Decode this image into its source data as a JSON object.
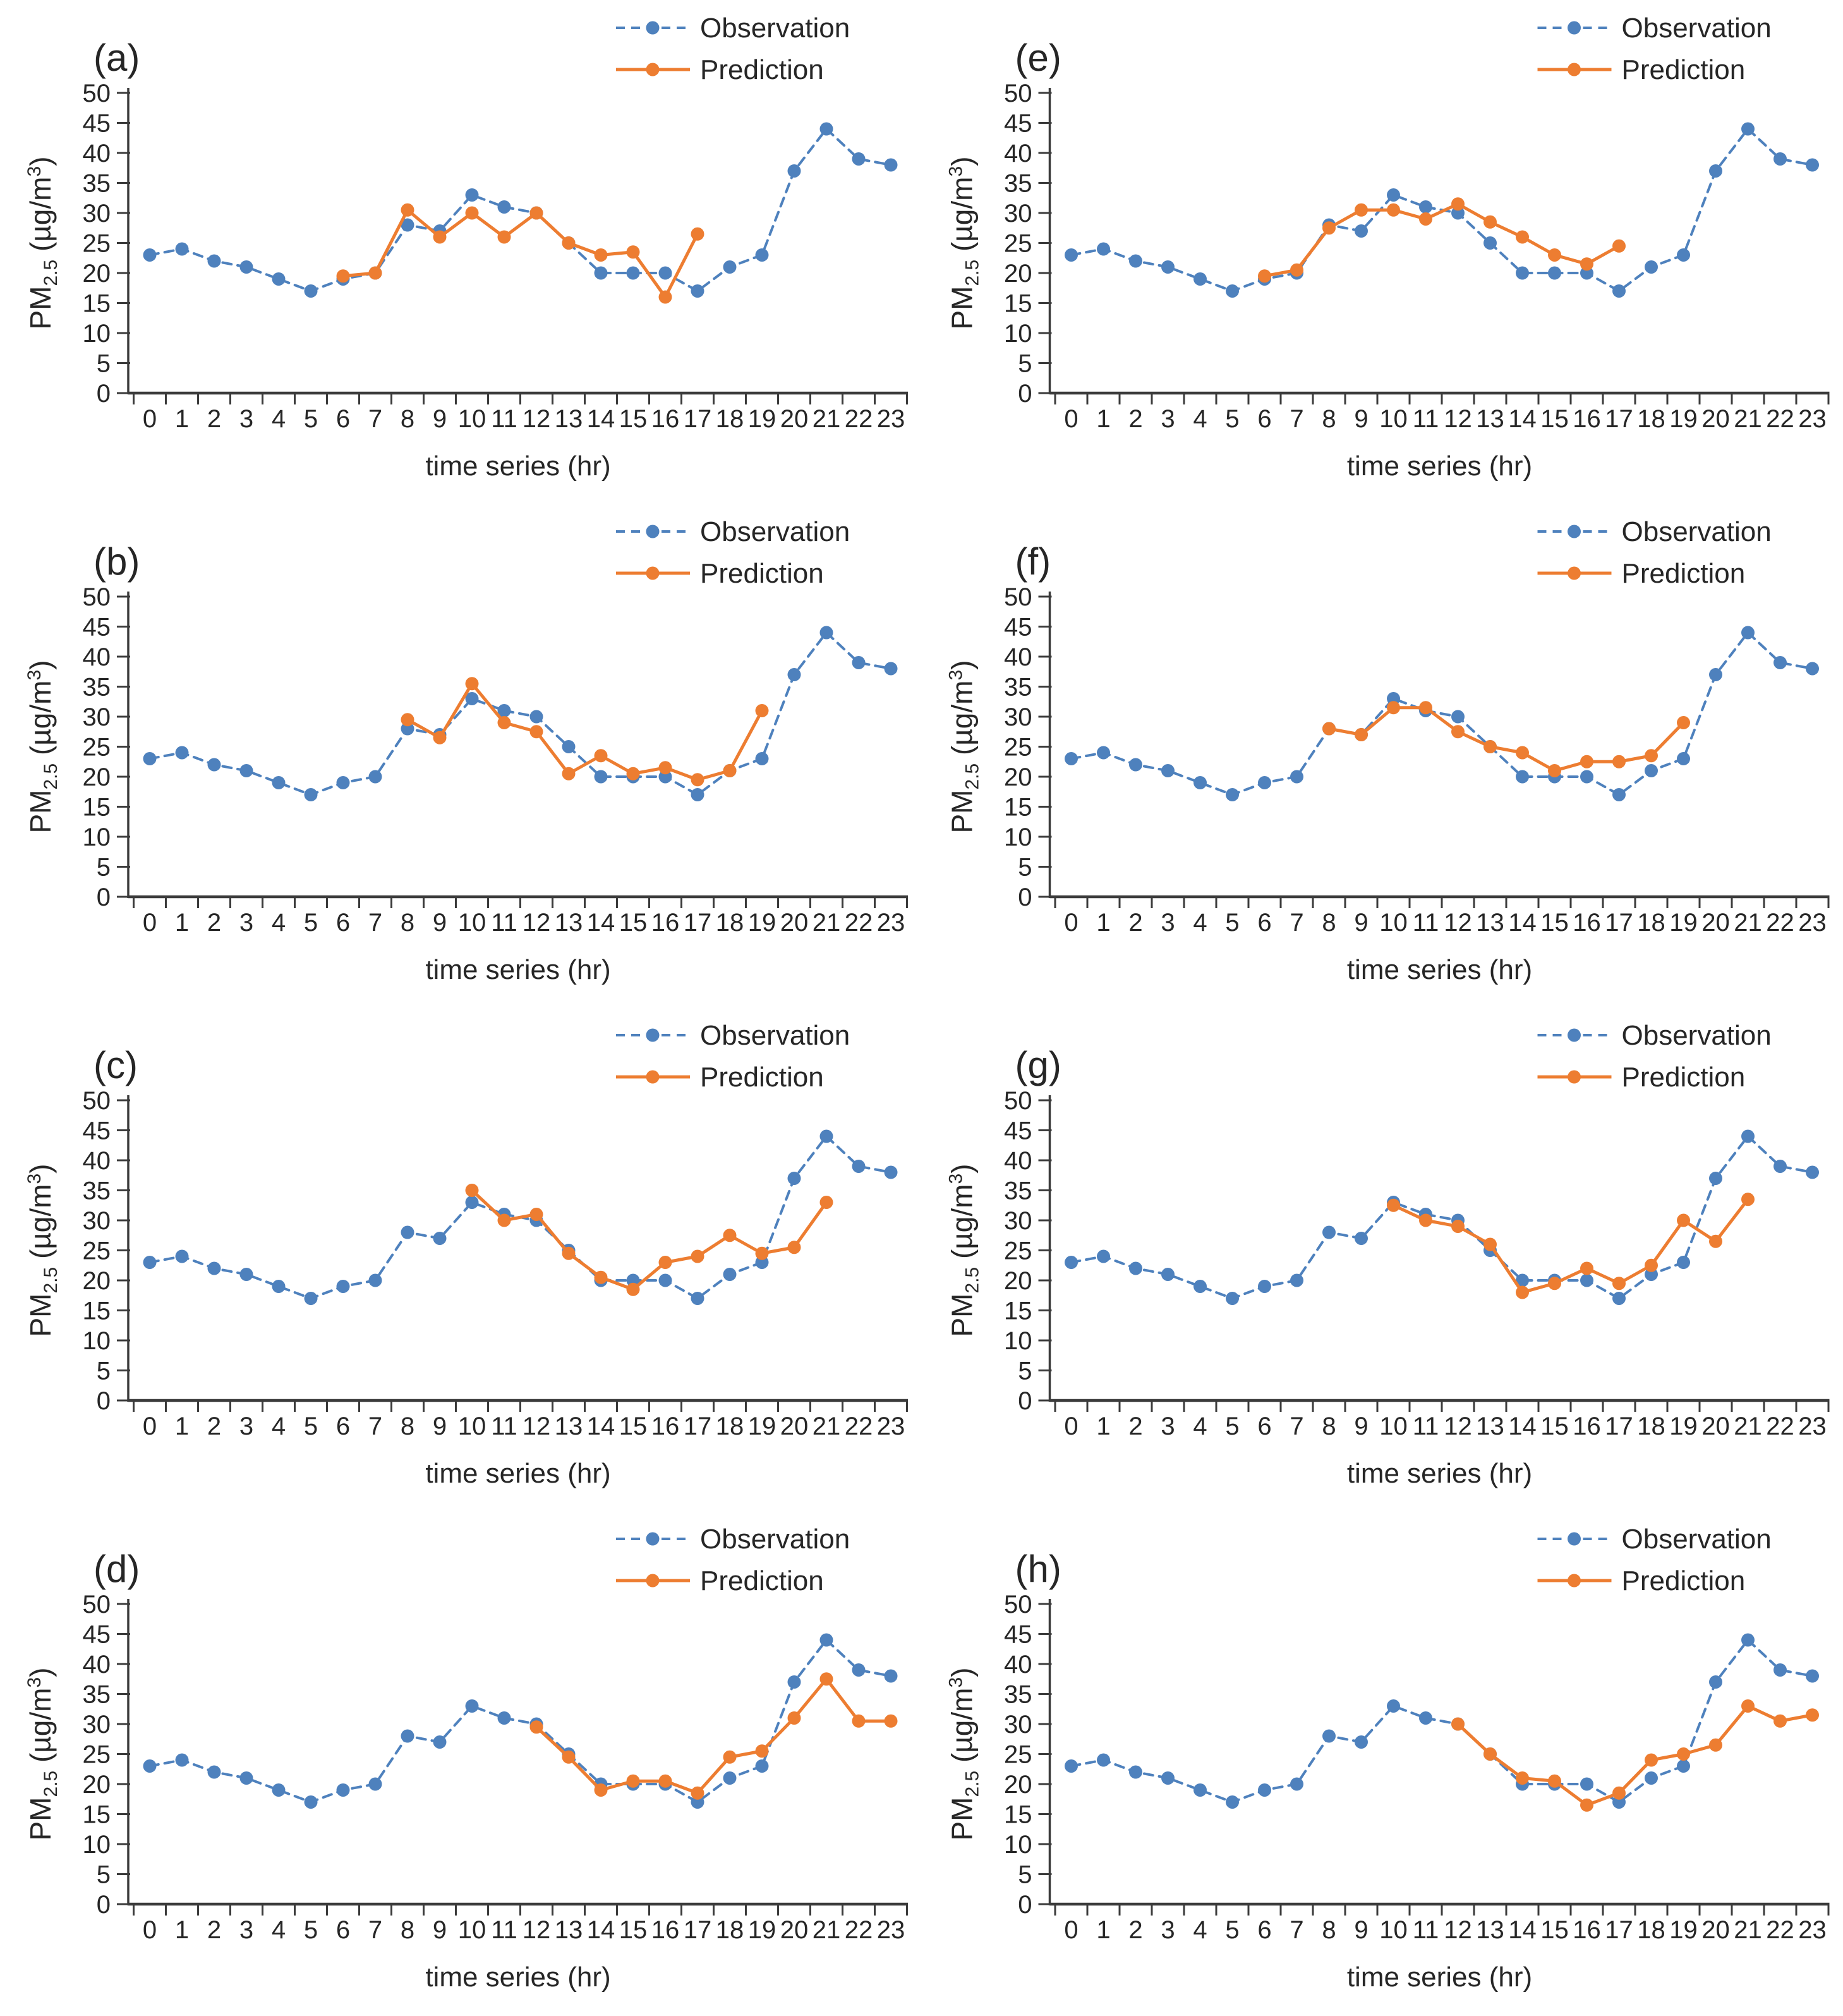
{
  "page": {
    "background": "#ffffff"
  },
  "colors": {
    "observation": "#4E81BD",
    "prediction": "#ED7D31",
    "axis": "#3b3b3b",
    "text": "#262626"
  },
  "legend": {
    "observation_label": "Observation",
    "prediction_label": "Prediction"
  },
  "axes": {
    "xlabel": "time series (hr)",
    "ylabel": "PM2.5 (µg/m³)",
    "ylabel_parts": {
      "base": "PM",
      "sub": "2.5",
      "mid": " (µg/m",
      "sup": "3",
      "end": ")"
    },
    "ylim": [
      0,
      50
    ],
    "ytick_step": 5,
    "xticks": [
      0,
      1,
      2,
      3,
      4,
      5,
      6,
      7,
      8,
      9,
      10,
      11,
      12,
      13,
      14,
      15,
      16,
      17,
      18,
      19,
      20,
      21,
      22,
      23
    ],
    "grid": "off",
    "legend_position": "top-right"
  },
  "chart_data": [
    {
      "type": "line",
      "panel_label": "(a)",
      "xlabel": "time series (hr)",
      "ylabel": "PM2.5 (µg/m³)",
      "ylim": [
        0,
        50
      ],
      "series": [
        {
          "name": "Observation",
          "style": "dashed",
          "color": "#4E81BD",
          "x": [
            0,
            1,
            2,
            3,
            4,
            5,
            6,
            7,
            8,
            9,
            10,
            11,
            12,
            13,
            14,
            15,
            16,
            17,
            18,
            19,
            20,
            21,
            22,
            23
          ],
          "values": [
            23,
            24,
            22,
            21,
            19,
            17,
            19,
            20,
            28,
            27,
            33,
            31,
            30,
            25,
            20,
            20,
            20,
            17,
            21,
            23,
            37,
            44,
            39,
            38
          ]
        },
        {
          "name": "Prediction",
          "style": "solid",
          "color": "#ED7D31",
          "x": [
            6,
            7,
            8,
            9,
            10,
            11,
            12,
            13,
            14,
            15,
            16,
            17
          ],
          "values": [
            19.5,
            20,
            30.5,
            26,
            30,
            26,
            30,
            25,
            23,
            23.5,
            16,
            26.5
          ]
        }
      ]
    },
    {
      "type": "line",
      "panel_label": "(e)",
      "xlabel": "time series (hr)",
      "ylabel": "PM2.5 (µg/m³)",
      "ylim": [
        0,
        50
      ],
      "series": [
        {
          "name": "Observation",
          "style": "dashed",
          "color": "#4E81BD",
          "x": [
            0,
            1,
            2,
            3,
            4,
            5,
            6,
            7,
            8,
            9,
            10,
            11,
            12,
            13,
            14,
            15,
            16,
            17,
            18,
            19,
            20,
            21,
            22,
            23
          ],
          "values": [
            23,
            24,
            22,
            21,
            19,
            17,
            19,
            20,
            28,
            27,
            33,
            31,
            30,
            25,
            20,
            20,
            20,
            17,
            21,
            23,
            37,
            44,
            39,
            38
          ]
        },
        {
          "name": "Prediction",
          "style": "solid",
          "color": "#ED7D31",
          "x": [
            6,
            7,
            8,
            9,
            10,
            11,
            12,
            13,
            14,
            15,
            16,
            17
          ],
          "values": [
            19.5,
            20.5,
            27.5,
            30.5,
            30.5,
            29,
            31.5,
            28.5,
            26,
            23,
            21.5,
            24.5
          ]
        }
      ]
    },
    {
      "type": "line",
      "panel_label": "(b)",
      "xlabel": "time series (hr)",
      "ylabel": "PM2.5 (µg/m³)",
      "ylim": [
        0,
        50
      ],
      "series": [
        {
          "name": "Observation",
          "style": "dashed",
          "color": "#4E81BD",
          "x": [
            0,
            1,
            2,
            3,
            4,
            5,
            6,
            7,
            8,
            9,
            10,
            11,
            12,
            13,
            14,
            15,
            16,
            17,
            18,
            19,
            20,
            21,
            22,
            23
          ],
          "values": [
            23,
            24,
            22,
            21,
            19,
            17,
            19,
            20,
            28,
            27,
            33,
            31,
            30,
            25,
            20,
            20,
            20,
            17,
            21,
            23,
            37,
            44,
            39,
            38
          ]
        },
        {
          "name": "Prediction",
          "style": "solid",
          "color": "#ED7D31",
          "x": [
            8,
            9,
            10,
            11,
            12,
            13,
            14,
            15,
            16,
            17,
            18,
            19
          ],
          "values": [
            29.5,
            26.5,
            35.5,
            29,
            27.5,
            20.5,
            23.5,
            20.5,
            21.5,
            19.5,
            21,
            31
          ]
        }
      ]
    },
    {
      "type": "line",
      "panel_label": "(f)",
      "xlabel": "time series (hr)",
      "ylabel": "PM2.5 (µg/m³)",
      "ylim": [
        0,
        50
      ],
      "series": [
        {
          "name": "Observation",
          "style": "dashed",
          "color": "#4E81BD",
          "x": [
            0,
            1,
            2,
            3,
            4,
            5,
            6,
            7,
            8,
            9,
            10,
            11,
            12,
            13,
            14,
            15,
            16,
            17,
            18,
            19,
            20,
            21,
            22,
            23
          ],
          "values": [
            23,
            24,
            22,
            21,
            19,
            17,
            19,
            20,
            28,
            27,
            33,
            31,
            30,
            25,
            20,
            20,
            20,
            17,
            21,
            23,
            37,
            44,
            39,
            38
          ]
        },
        {
          "name": "Prediction",
          "style": "solid",
          "color": "#ED7D31",
          "x": [
            8,
            9,
            10,
            11,
            12,
            13,
            14,
            15,
            16,
            17,
            18,
            19
          ],
          "values": [
            28,
            27,
            31.5,
            31.5,
            27.5,
            25,
            24,
            21,
            22.5,
            22.5,
            23.5,
            29
          ]
        }
      ]
    },
    {
      "type": "line",
      "panel_label": "(c)",
      "xlabel": "time series (hr)",
      "ylabel": "PM2.5 (µg/m³)",
      "ylim": [
        0,
        50
      ],
      "series": [
        {
          "name": "Observation",
          "style": "dashed",
          "color": "#4E81BD",
          "x": [
            0,
            1,
            2,
            3,
            4,
            5,
            6,
            7,
            8,
            9,
            10,
            11,
            12,
            13,
            14,
            15,
            16,
            17,
            18,
            19,
            20,
            21,
            22,
            23
          ],
          "values": [
            23,
            24,
            22,
            21,
            19,
            17,
            19,
            20,
            28,
            27,
            33,
            31,
            30,
            25,
            20,
            20,
            20,
            17,
            21,
            23,
            37,
            44,
            39,
            38
          ]
        },
        {
          "name": "Prediction",
          "style": "solid",
          "color": "#ED7D31",
          "x": [
            10,
            11,
            12,
            13,
            14,
            15,
            16,
            17,
            18,
            19,
            20,
            21
          ],
          "values": [
            35,
            30,
            31,
            24.5,
            20.5,
            18.5,
            23,
            24,
            27.5,
            24.5,
            25.5,
            33
          ]
        }
      ]
    },
    {
      "type": "line",
      "panel_label": "(g)",
      "xlabel": "time series (hr)",
      "ylabel": "PM2.5 (µg/m³)",
      "ylim": [
        0,
        50
      ],
      "series": [
        {
          "name": "Observation",
          "style": "dashed",
          "color": "#4E81BD",
          "x": [
            0,
            1,
            2,
            3,
            4,
            5,
            6,
            7,
            8,
            9,
            10,
            11,
            12,
            13,
            14,
            15,
            16,
            17,
            18,
            19,
            20,
            21,
            22,
            23
          ],
          "values": [
            23,
            24,
            22,
            21,
            19,
            17,
            19,
            20,
            28,
            27,
            33,
            31,
            30,
            25,
            20,
            20,
            20,
            17,
            21,
            23,
            37,
            44,
            39,
            38
          ]
        },
        {
          "name": "Prediction",
          "style": "solid",
          "color": "#ED7D31",
          "x": [
            10,
            11,
            12,
            13,
            14,
            15,
            16,
            17,
            18,
            19,
            20,
            21
          ],
          "values": [
            32.5,
            30,
            29,
            26,
            18,
            19.5,
            22,
            19.5,
            22.5,
            30,
            26.5,
            33.5
          ]
        }
      ]
    },
    {
      "type": "line",
      "panel_label": "(d)",
      "xlabel": "time series (hr)",
      "ylabel": "PM2.5 (µg/m³)",
      "ylim": [
        0,
        50
      ],
      "series": [
        {
          "name": "Observation",
          "style": "dashed",
          "color": "#4E81BD",
          "x": [
            0,
            1,
            2,
            3,
            4,
            5,
            6,
            7,
            8,
            9,
            10,
            11,
            12,
            13,
            14,
            15,
            16,
            17,
            18,
            19,
            20,
            21,
            22,
            23
          ],
          "values": [
            23,
            24,
            22,
            21,
            19,
            17,
            19,
            20,
            28,
            27,
            33,
            31,
            30,
            25,
            20,
            20,
            20,
            17,
            21,
            23,
            37,
            44,
            39,
            38
          ]
        },
        {
          "name": "Prediction",
          "style": "solid",
          "color": "#ED7D31",
          "x": [
            12,
            13,
            14,
            15,
            16,
            17,
            18,
            19,
            20,
            21,
            22,
            23
          ],
          "values": [
            29.5,
            24.5,
            19,
            20.5,
            20.5,
            18.5,
            24.5,
            25.5,
            31,
            37.5,
            30.5,
            30.5
          ]
        }
      ]
    },
    {
      "type": "line",
      "panel_label": "(h)",
      "xlabel": "time series (hr)",
      "ylabel": "PM2.5 (µg/m³)",
      "ylim": [
        0,
        50
      ],
      "series": [
        {
          "name": "Observation",
          "style": "dashed",
          "color": "#4E81BD",
          "x": [
            0,
            1,
            2,
            3,
            4,
            5,
            6,
            7,
            8,
            9,
            10,
            11,
            12,
            13,
            14,
            15,
            16,
            17,
            18,
            19,
            20,
            21,
            22,
            23
          ],
          "values": [
            23,
            24,
            22,
            21,
            19,
            17,
            19,
            20,
            28,
            27,
            33,
            31,
            30,
            25,
            20,
            20,
            20,
            17,
            21,
            23,
            37,
            44,
            39,
            38
          ]
        },
        {
          "name": "Prediction",
          "style": "solid",
          "color": "#ED7D31",
          "x": [
            12,
            13,
            14,
            15,
            16,
            17,
            18,
            19,
            20,
            21,
            22,
            23
          ],
          "values": [
            30,
            25,
            21,
            20.5,
            16.5,
            18.5,
            24,
            25,
            26.5,
            33,
            30.5,
            31.5
          ]
        }
      ]
    }
  ]
}
